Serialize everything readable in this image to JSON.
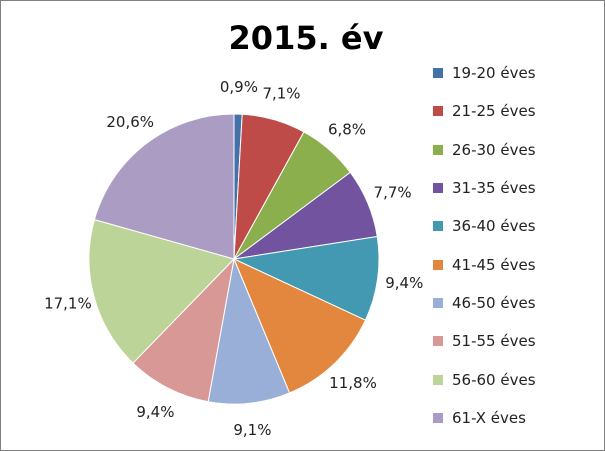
{
  "chart_data": {
    "type": "pie",
    "title": "2015. év",
    "categories": [
      "19-20 éves",
      "21-25 éves",
      "26-30 éves",
      "31-35 éves",
      "36-40 éves",
      "41-45 éves",
      "46-50 éves",
      "51-55 éves",
      "56-60 éves",
      "61-X éves"
    ],
    "values": [
      0.9,
      7.1,
      6.8,
      7.7,
      9.4,
      11.8,
      9.1,
      9.4,
      17.1,
      20.6
    ],
    "labels": [
      "0,9%",
      "7,1%",
      "6,8%",
      "7,7%",
      "9,4%",
      "11,8%",
      "9,1%",
      "9,4%",
      "17,1%",
      "20,6%"
    ],
    "colors": [
      "#4472A8",
      "#BE4B48",
      "#8CAF4D",
      "#7153A0",
      "#4399B2",
      "#E3873E",
      "#99AFD8",
      "#D89895",
      "#BCD498",
      "#AB9CC4"
    ],
    "legend": "right"
  }
}
